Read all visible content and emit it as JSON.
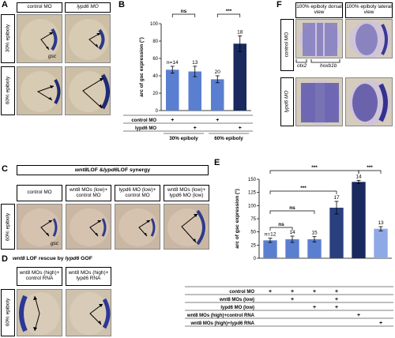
{
  "panels": {
    "A": {
      "letter": "A",
      "columns": [
        "control MO",
        "lypd6 MO"
      ],
      "rows": [
        "30% epiboly",
        "60% epiboly"
      ],
      "marker": "gsc"
    },
    "B": {
      "letter": "B",
      "sig": [
        "ns",
        "***"
      ],
      "groups": [
        "30% epiboly",
        "60% epiboly"
      ],
      "table_rows": [
        "control MO",
        "lypd6 MO"
      ],
      "table_marks": [
        [
          "+",
          "",
          "+",
          ""
        ],
        [
          "",
          "+",
          "",
          "+"
        ]
      ]
    },
    "C": {
      "letter": "C",
      "title_italic": "wnt8",
      "title_rest": " LOF & ",
      "title_italic2": "lypd6",
      "title_rest2": " LOF synergy",
      "columns": [
        "control MO",
        "wnt8 MOs (low)+ control MO",
        "lypd6 MO (low)+ control MO",
        "wnt8 MOs (low)+ lypd6 MO (low)"
      ],
      "row": "60% epiboly",
      "marker": "gsc"
    },
    "D": {
      "letter": "D",
      "title_italic": "wnt8",
      "title_rest": " LOF rescue by ",
      "title_italic2": "lypd6",
      "title_rest2": " GOF",
      "columns": [
        "wnt8 MOs (high)+ control RNA",
        "wnt8 MOs (high)+ lypd6 RNA"
      ],
      "row": "60% epiboly"
    },
    "E": {
      "letter": "E",
      "sig": [
        "***",
        "***",
        "***",
        "ns",
        "ns"
      ],
      "table_rows": [
        "control MO",
        "wnt8 MOs (low)",
        "lypd6 MO (low)",
        "wnt8 MOs (high)+control RNA",
        "wnt8 MOs (high)+lypd6 RNA"
      ],
      "table_marks": [
        [
          "+",
          "+",
          "+",
          "+",
          "",
          ""
        ],
        [
          "",
          "+",
          "",
          "+",
          "",
          ""
        ],
        [
          "",
          "",
          "+",
          "+",
          "",
          ""
        ],
        [
          "",
          "",
          "",
          "",
          "+",
          ""
        ],
        [
          "",
          "",
          "",
          "",
          "",
          "+"
        ]
      ]
    },
    "F": {
      "letter": "F",
      "columns": [
        "100% epiboly dorsal view",
        "100% epiboly lateral view"
      ],
      "rows": [
        "control MO",
        "lypd6 MO"
      ],
      "markers": [
        "otx2",
        "hoxb1b"
      ]
    }
  },
  "chart_data": [
    {
      "type": "bar",
      "panel": "B",
      "ylabel": "arc of gsc expression (°)",
      "ylim": [
        0,
        100
      ],
      "yticks": [
        0,
        20,
        40,
        60,
        80,
        100
      ],
      "categories": [
        "control MO 30%",
        "lypd6 MO 30%",
        "control MO 60%",
        "lypd6 MO 60%"
      ],
      "values": [
        47,
        45,
        36,
        77
      ],
      "errors": [
        4,
        6,
        4,
        9
      ],
      "n": [
        "n=14",
        "13",
        "20",
        "18"
      ],
      "colors": [
        "#5b7fd0",
        "#5b7fd0",
        "#5b7fd0",
        "#1a2a5e"
      ]
    },
    {
      "type": "bar",
      "panel": "E",
      "ylabel": "arc of gsc expression (°)",
      "ylim": [
        0,
        150
      ],
      "yticks": [
        0,
        25,
        50,
        75,
        100,
        125,
        150
      ],
      "categories": [
        "control MO",
        "wnt8 MOs (low)+control MO",
        "lypd6 MO (low)+control MO",
        "wnt8 MOs (low)+lypd6 MO (low)",
        "wnt8 MOs (high)+control RNA",
        "wnt8 MOs (high)+lypd6 RNA"
      ],
      "values": [
        34,
        36,
        36,
        96,
        145,
        56
      ],
      "errors": [
        4,
        6,
        5,
        12,
        3,
        4
      ],
      "n": [
        "n=12",
        "14",
        "15",
        "17",
        "14",
        "13"
      ],
      "colors": [
        "#5b7fd0",
        "#5b7fd0",
        "#5b7fd0",
        "#2a3f7e",
        "#1a2a5e",
        "#8fa8e6"
      ]
    }
  ]
}
